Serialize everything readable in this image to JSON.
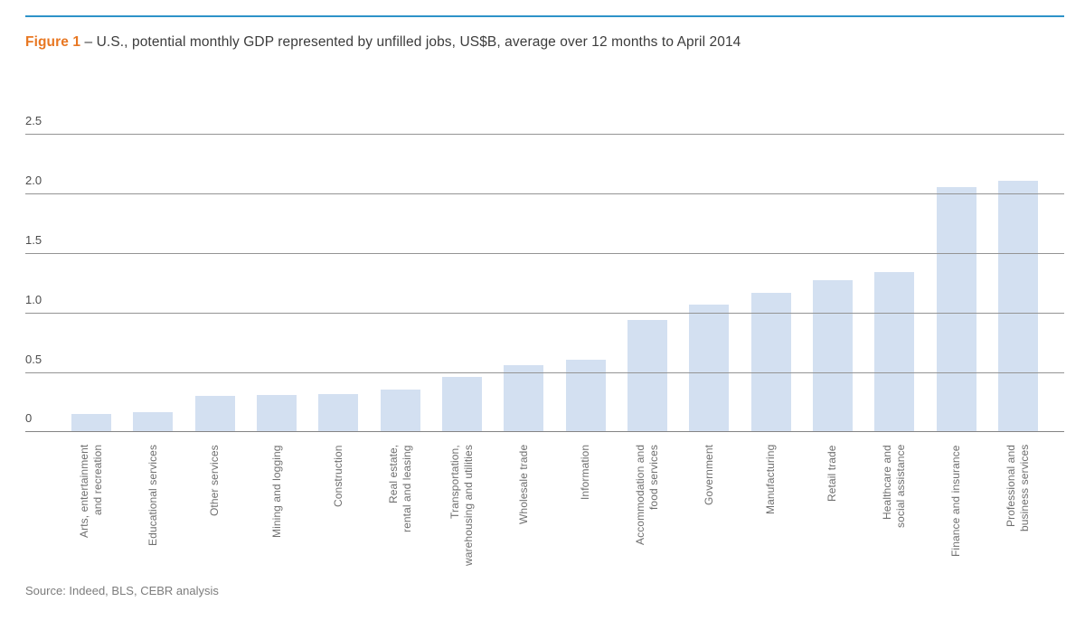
{
  "header": {
    "figure_label": "Figure 1",
    "title_rest": " – U.S., potential monthly GDP represented by unfilled jobs, US$B, average over 12 months to April 2014"
  },
  "footer": {
    "source": "Source: Indeed, BLS, CEBR analysis"
  },
  "colors": {
    "accent_rule": "#2e93c9",
    "figure_label": "#e87722",
    "bar_fill": "#d3e0f1",
    "gridline": "#949494",
    "title_text": "#3c3c3c",
    "ytick_text": "#4c4c4c",
    "category_text": "#6f6f6f",
    "source_text": "#7c7c7c"
  },
  "chart_data": {
    "type": "bar",
    "title": "U.S., potential monthly GDP represented by unfilled jobs, US$B, average over 12 months to April 2014",
    "categories": [
      "Arts, entertainment and recreation",
      "Educational services",
      "Other services",
      "Mining and logging",
      "Construction",
      "Real estate, rental and leasing",
      "Transportation, warehousing and utilities",
      "Wholesale trade",
      "Information",
      "Accommodation and food services",
      "Government",
      "Manufacturing",
      "Retail trade",
      "Healthcare and social assistance",
      "Finance and insurance",
      "Professional and business services"
    ],
    "category_label_lines": [
      [
        "Arts, entertainment",
        "and recreation"
      ],
      [
        "Educational services"
      ],
      [
        "Other services"
      ],
      [
        "Mining and logging"
      ],
      [
        "Construction"
      ],
      [
        "Real estate,",
        "rental and leasing"
      ],
      [
        "Transportation,",
        "warehousing and utilities"
      ],
      [
        "Wholesale trade"
      ],
      [
        "Information"
      ],
      [
        "Accommodation and",
        "food services"
      ],
      [
        "Government"
      ],
      [
        "Manufacturing"
      ],
      [
        "Retail trade"
      ],
      [
        "Healthcare and",
        "social assistance"
      ],
      [
        "Finance and insurance"
      ],
      [
        "Professional and",
        "business services"
      ]
    ],
    "values": [
      0.15,
      0.17,
      0.3,
      0.31,
      0.32,
      0.36,
      0.46,
      0.56,
      0.61,
      0.94,
      1.07,
      1.17,
      1.27,
      1.34,
      2.05,
      2.11
    ],
    "xlabel": "",
    "ylabel": "",
    "ylim": [
      0,
      2.5
    ],
    "yticks": [
      "0",
      "0.5",
      "1.0",
      "1.5",
      "2.0",
      "2.5"
    ],
    "ytick_values": [
      0,
      0.5,
      1.0,
      1.5,
      2.0,
      2.5
    ],
    "grid": "horizontal gridlines on, drawn over bars",
    "legend": "none"
  }
}
